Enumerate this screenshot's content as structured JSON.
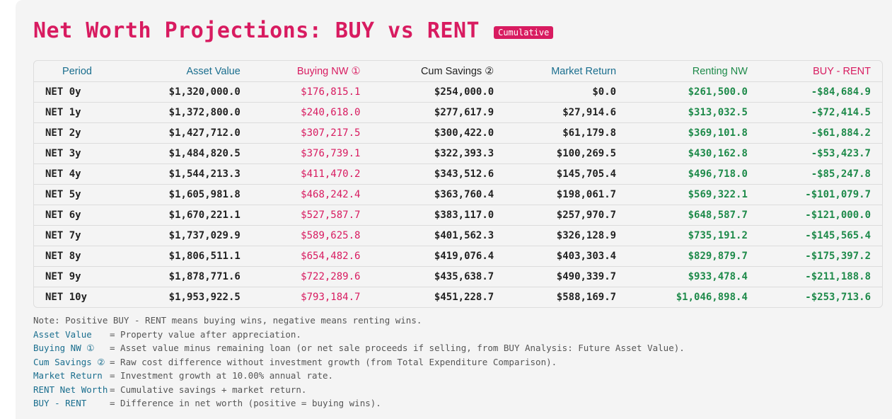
{
  "title": "Net Worth Projections: BUY vs RENT",
  "badge": "Cumulative",
  "headers": {
    "period": "Period",
    "asset": "Asset Value",
    "buying": "Buying NW ①",
    "cum": "Cum Savings ②",
    "market": "Market Return",
    "renting": "Renting NW",
    "diff": "BUY - RENT"
  },
  "rows": [
    {
      "period": "NET 0y",
      "asset": "$1,320,000.0",
      "buying": "$176,815.1",
      "cum": "$254,000.0",
      "market": "$0.0",
      "renting": "$261,500.0",
      "diff": "-$84,684.9"
    },
    {
      "period": "NET 1y",
      "asset": "$1,372,800.0",
      "buying": "$240,618.0",
      "cum": "$277,617.9",
      "market": "$27,914.6",
      "renting": "$313,032.5",
      "diff": "-$72,414.5"
    },
    {
      "period": "NET 2y",
      "asset": "$1,427,712.0",
      "buying": "$307,217.5",
      "cum": "$300,422.0",
      "market": "$61,179.8",
      "renting": "$369,101.8",
      "diff": "-$61,884.2"
    },
    {
      "period": "NET 3y",
      "asset": "$1,484,820.5",
      "buying": "$376,739.1",
      "cum": "$322,393.3",
      "market": "$100,269.5",
      "renting": "$430,162.8",
      "diff": "-$53,423.7"
    },
    {
      "period": "NET 4y",
      "asset": "$1,544,213.3",
      "buying": "$411,470.2",
      "cum": "$343,512.6",
      "market": "$145,705.4",
      "renting": "$496,718.0",
      "diff": "-$85,247.8"
    },
    {
      "period": "NET 5y",
      "asset": "$1,605,981.8",
      "buying": "$468,242.4",
      "cum": "$363,760.4",
      "market": "$198,061.7",
      "renting": "$569,322.1",
      "diff": "-$101,079.7"
    },
    {
      "period": "NET 6y",
      "asset": "$1,670,221.1",
      "buying": "$527,587.7",
      "cum": "$383,117.0",
      "market": "$257,970.7",
      "renting": "$648,587.7",
      "diff": "-$121,000.0"
    },
    {
      "period": "NET 7y",
      "asset": "$1,737,029.9",
      "buying": "$589,625.8",
      "cum": "$401,562.3",
      "market": "$326,128.9",
      "renting": "$735,191.2",
      "diff": "-$145,565.4"
    },
    {
      "period": "NET 8y",
      "asset": "$1,806,511.1",
      "buying": "$654,482.6",
      "cum": "$419,076.4",
      "market": "$403,303.4",
      "renting": "$829,879.7",
      "diff": "-$175,397.2"
    },
    {
      "period": "NET 9y",
      "asset": "$1,878,771.6",
      "buying": "$722,289.6",
      "cum": "$435,638.7",
      "market": "$490,339.7",
      "renting": "$933,478.4",
      "diff": "-$211,188.8"
    },
    {
      "period": "NET 10y",
      "asset": "$1,953,922.5",
      "buying": "$793,184.7",
      "cum": "$451,228.7",
      "market": "$588,169.7",
      "renting": "$1,046,898.4",
      "diff": "-$253,713.6"
    }
  ],
  "notes": {
    "intro": "Note: Positive BUY - RENT means buying wins, negative means renting wins.",
    "items": [
      {
        "key": "Asset Value",
        "text": "= Property value after appreciation."
      },
      {
        "key": "Buying NW ①",
        "text": "= Asset value minus remaining loan (or net sale proceeds if selling, from BUY Analysis: Future Asset Value)."
      },
      {
        "key": "Cum Savings ②",
        "text": "= Raw cost difference without investment growth (from Total Expenditure Comparison)."
      },
      {
        "key": "Market Return",
        "text": "= Investment growth at 10.00% annual rate."
      },
      {
        "key": "RENT Net Worth",
        "text": "= Cumulative savings + market return."
      },
      {
        "key": "BUY - RENT",
        "text": "= Difference in net worth (positive = buying wins)."
      }
    ]
  },
  "colors": {
    "accent": "#d81b60",
    "teal": "#1a6e8e",
    "green": "#1e8a4a"
  }
}
